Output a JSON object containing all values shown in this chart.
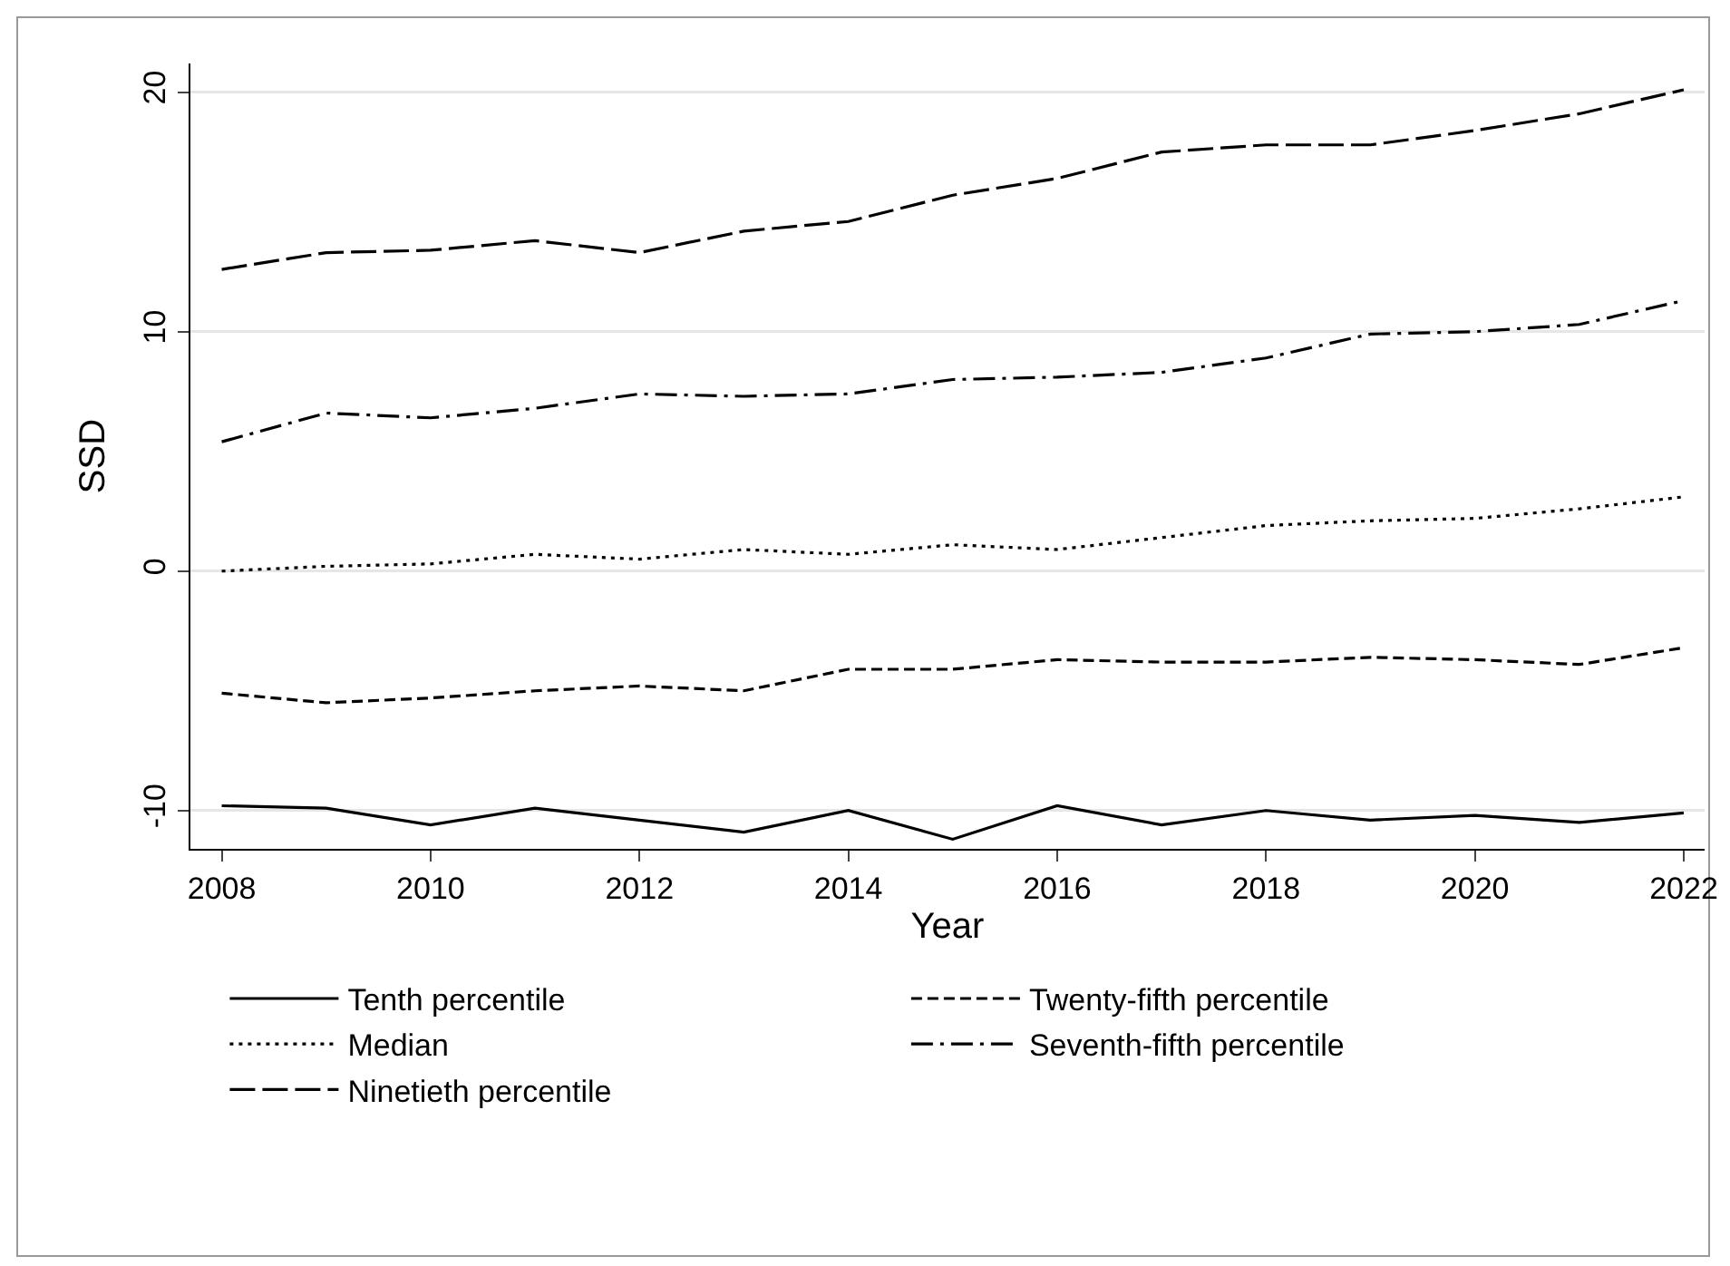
{
  "chart_data": {
    "type": "line",
    "xlabel": "Year",
    "ylabel": "SSD",
    "x": [
      2008,
      2009,
      2010,
      2011,
      2012,
      2013,
      2014,
      2015,
      2016,
      2017,
      2018,
      2019,
      2020,
      2021,
      2022
    ],
    "series": [
      {
        "name": "Tenth percentile",
        "color": "#000000",
        "line_style": "solid",
        "values": [
          -9.8,
          -9.9,
          -10.6,
          -9.9,
          -10.4,
          -10.9,
          -10.0,
          -11.2,
          -9.8,
          -10.6,
          -10.0,
          -10.4,
          -10.2,
          -10.5,
          -10.1
        ]
      },
      {
        "name": "Twenty-fifth percentile",
        "color": "#000000",
        "line_style": "dashed",
        "values": [
          -5.1,
          -5.5,
          -5.3,
          -5.0,
          -4.8,
          -5.0,
          -4.1,
          -4.1,
          -3.7,
          -3.8,
          -3.8,
          -3.6,
          -3.7,
          -3.9,
          -3.2
        ]
      },
      {
        "name": "Median",
        "color": "#000000",
        "line_style": "dotted",
        "values": [
          0,
          0.2,
          0.3,
          0.7,
          0.5,
          0.9,
          0.7,
          1.1,
          0.9,
          1.4,
          1.9,
          2.1,
          2.2,
          2.6,
          3.1
        ]
      },
      {
        "name": "Seventh-fifth percentile",
        "color": "#000000",
        "line_style": "dashdot",
        "values": [
          5.4,
          6.6,
          6.4,
          6.8,
          7.4,
          7.3,
          7.4,
          8.0,
          8.1,
          8.3,
          8.9,
          9.9,
          10.0,
          10.3,
          11.3
        ]
      },
      {
        "name": "Ninetieth percentile",
        "color": "#000000",
        "line_style": "longdash",
        "values": [
          12.6,
          13.3,
          13.4,
          13.8,
          13.3,
          14.2,
          14.6,
          15.7,
          16.4,
          17.5,
          17.8,
          17.8,
          18.4,
          19.1,
          20.1
        ]
      }
    ],
    "xlim": [
      2007.7,
      2022.2
    ],
    "xticks": [
      2008,
      2010,
      2012,
      2014,
      2016,
      2018,
      2020,
      2022
    ],
    "ylim": [
      -11.6,
      21.2
    ],
    "yticks": [
      -10,
      0,
      10,
      20
    ],
    "grid": "y",
    "legend": "bottom",
    "marker": "none"
  }
}
